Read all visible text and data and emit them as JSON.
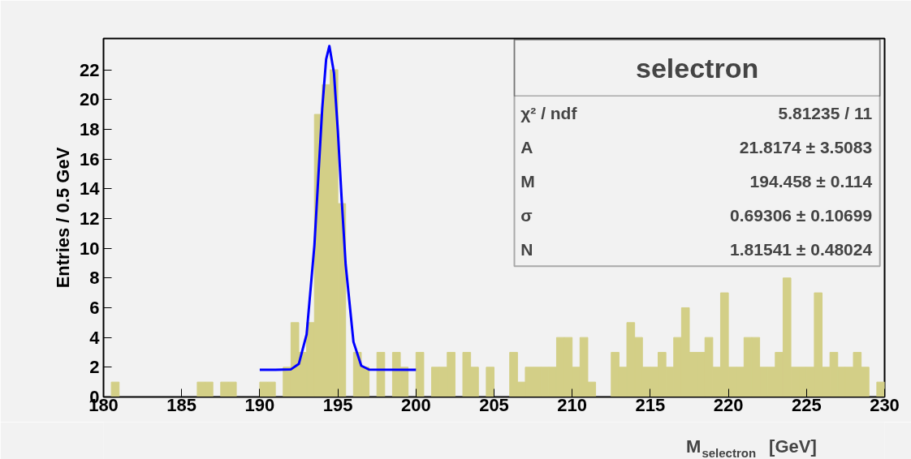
{
  "chart_data": {
    "type": "histogram",
    "title": "selectron",
    "xlabel": "M$_{selectron}$ [GeV]",
    "ylabel": "Entries / 0.5 GeV",
    "xlim": [
      180,
      230
    ],
    "ylim": [
      0,
      24.1
    ],
    "xticks": [
      180,
      185,
      190,
      195,
      200,
      205,
      210,
      215,
      220,
      225,
      230
    ],
    "yticks": [
      0,
      2,
      4,
      6,
      8,
      10,
      12,
      14,
      16,
      18,
      20,
      22
    ],
    "series": [
      {
        "color": "#d3cf87",
        "bins": [
          180,
          180.5,
          181,
          181.5,
          182,
          182.5,
          183,
          183.5,
          184,
          184.5,
          185,
          185.5,
          186,
          186.5,
          187,
          187.5,
          188,
          188.5,
          189,
          189.5,
          190,
          190.5,
          191,
          191.5,
          192,
          192.5,
          193,
          193.5,
          194,
          194.5,
          195,
          195.5,
          196,
          196.5,
          197,
          197.5,
          198,
          198.5,
          199,
          199.5,
          200,
          200.5,
          201,
          201.5,
          202,
          202.5,
          203,
          203.5,
          204,
          204.5,
          205,
          205.5,
          206,
          206.5,
          207,
          207.5,
          208,
          208.5,
          209,
          209.5,
          210,
          210.5,
          211,
          211.5,
          212,
          212.5,
          213,
          213.5,
          214,
          214.5,
          215,
          215.5,
          216,
          216.5,
          217,
          217.5,
          218,
          218.5,
          219,
          219.5,
          220,
          220.5,
          221,
          221.5,
          222,
          222.5,
          223,
          223.5,
          224,
          224.5,
          225,
          225.5,
          226,
          226.5,
          227,
          227.5,
          228,
          228.5,
          229,
          229.5,
          230
        ],
        "values": [
          0,
          1,
          0,
          0,
          0,
          0,
          0,
          0,
          0,
          0,
          0,
          0,
          1,
          1,
          0,
          1,
          1,
          0,
          0,
          0,
          1,
          1,
          0,
          2,
          5,
          3,
          5,
          19,
          21,
          22,
          13,
          0,
          3,
          2,
          0,
          3,
          0,
          3,
          2,
          0,
          3,
          0,
          2,
          2,
          3,
          0,
          3,
          2,
          0,
          2,
          0,
          0,
          3,
          1,
          2,
          2,
          2,
          2,
          4,
          4,
          2,
          4,
          1,
          0,
          0,
          3,
          2,
          5,
          4,
          2,
          2,
          3,
          2,
          4,
          6,
          3,
          3,
          4,
          2,
          7,
          2,
          2,
          4,
          4,
          2,
          2,
          3,
          8,
          2,
          2,
          2,
          7,
          2,
          3,
          2,
          2,
          3,
          2,
          0,
          1
        ]
      },
      {
        "type": "line",
        "color": "#0000ff",
        "x": [
          190,
          191,
          192,
          192.5,
          193,
          193.5,
          193.75,
          194,
          194.25,
          194.458,
          194.75,
          195,
          195.25,
          195.5,
          196,
          196.5,
          197,
          200
        ],
        "values": [
          1.82,
          1.82,
          1.86,
          2.22,
          4.2,
          10.2,
          14.8,
          19.4,
          22.7,
          23.6,
          21.8,
          17.9,
          13.2,
          8.9,
          3.7,
          2.1,
          1.84,
          1.82
        ]
      }
    ],
    "annotations": [
      "χ² / ndf",
      "5.81235 / 11",
      "A",
      "21.8174 ± 3.5083",
      "M",
      "194.458 ± 0.114",
      "σ",
      "0.69306 ± 0.10699",
      "N",
      "1.81541 ± 0.48024"
    ]
  }
}
